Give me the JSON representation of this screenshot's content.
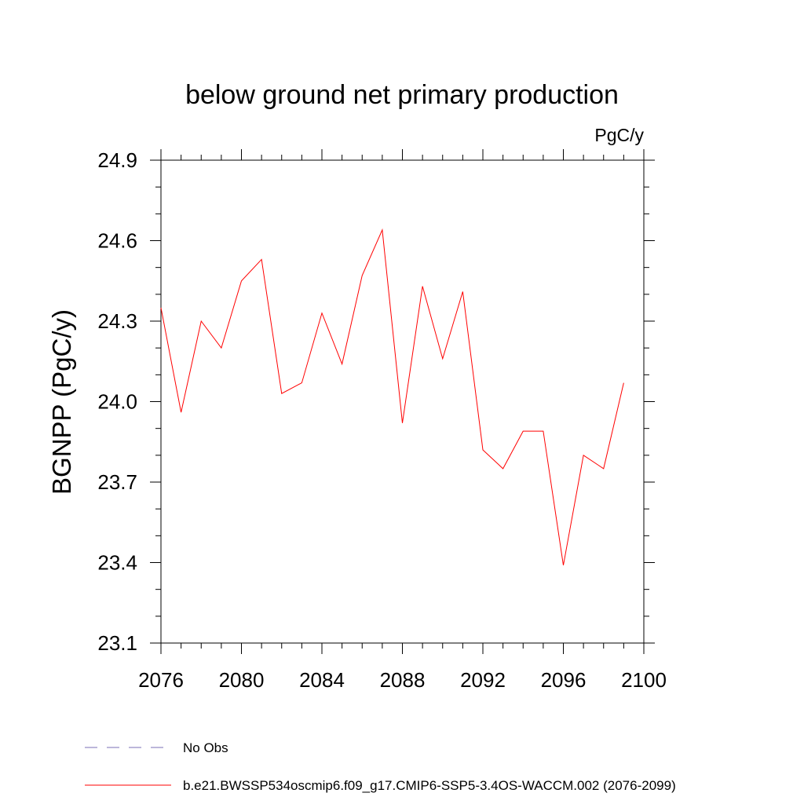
{
  "chart_data": {
    "type": "line",
    "title": "below ground net primary production",
    "units_label": "PgC/y",
    "xlabel": "",
    "ylabel": "BGNPP  (PgC/y)",
    "xlim": [
      2076,
      2100
    ],
    "ylim": [
      23.1,
      24.9
    ],
    "x_ticks": [
      2076,
      2080,
      2084,
      2088,
      2092,
      2096,
      2100
    ],
    "x_tick_labels": [
      "2076",
      "2080",
      "2084",
      "2088",
      "2092",
      "2096",
      "2100"
    ],
    "y_ticks": [
      23.1,
      23.4,
      23.7,
      24.0,
      24.3,
      24.6,
      24.9
    ],
    "y_tick_labels": [
      "23.1",
      "23.4",
      "23.7",
      "24.0",
      "24.3",
      "24.6",
      "24.9"
    ],
    "grid": false,
    "legend_placement": "bottom",
    "x": [
      2076,
      2077,
      2078,
      2079,
      2080,
      2081,
      2082,
      2083,
      2084,
      2085,
      2086,
      2087,
      2088,
      2089,
      2090,
      2091,
      2092,
      2093,
      2094,
      2095,
      2096,
      2097,
      2098,
      2099
    ],
    "series": [
      {
        "name": "b.e21.BWSSP534oscmip6.f09_g17.CMIP6-SSP5-3.4OS-WACCM.002 (2076-2099)",
        "color": "#ff0000",
        "style": "solid",
        "values": [
          24.35,
          23.96,
          24.3,
          24.2,
          24.45,
          24.53,
          24.03,
          24.07,
          24.33,
          24.14,
          24.47,
          24.64,
          23.92,
          24.43,
          24.16,
          24.41,
          23.82,
          23.75,
          23.89,
          23.89,
          23.39,
          23.8,
          23.75,
          24.07
        ]
      }
    ],
    "legend": [
      {
        "label": "No Obs",
        "color": "#7a6fb5",
        "style": "dashed"
      },
      {
        "label": "b.e21.BWSSP534oscmip6.f09_g17.CMIP6-SSP5-3.4OS-WACCM.002 (2076-2099)",
        "color": "#ff0000",
        "style": "solid"
      }
    ]
  }
}
